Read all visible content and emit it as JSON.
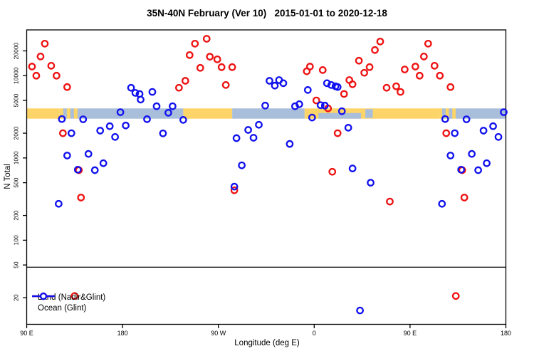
{
  "chart_data": {
    "type": "scatter",
    "title": "35N-40N February (Ver 10)   2015-01-01 to 2020-12-18",
    "xlabel": "Longitude (deg E)",
    "ylabel": "N Total",
    "x_axis": {
      "min": 0,
      "max": 450,
      "unit": "degrees east of 90E, wrapping eastward around the globe",
      "ticks": [
        {
          "pos": 0,
          "label": "90 E"
        },
        {
          "pos": 90,
          "label": "180"
        },
        {
          "pos": 180,
          "label": "90 W"
        },
        {
          "pos": 270,
          "label": "0"
        },
        {
          "pos": 360,
          "label": "90 E"
        },
        {
          "pos": 450,
          "label": "180"
        }
      ]
    },
    "y_axis": {
      "scale": "log",
      "min": 9.5,
      "max": 36000,
      "ticks": [
        20,
        50,
        100,
        200,
        500,
        1000,
        2000,
        5000,
        10000,
        20000
      ]
    },
    "grid": "off",
    "cutoff_line_n": 47,
    "land_ocean_band": {
      "n_top": 4000,
      "n_bottom": 3000,
      "segments": [
        {
          "from": 0,
          "to": 31,
          "type": "land"
        },
        {
          "from": 31,
          "to": 51,
          "type": "mixed"
        },
        {
          "from": 51,
          "to": 147,
          "type": "ocean"
        },
        {
          "from": 147,
          "to": 193,
          "type": "land"
        },
        {
          "from": 193,
          "to": 261,
          "type": "ocean"
        },
        {
          "from": 261,
          "to": 387,
          "type": "land"
        },
        {
          "from": 387,
          "to": 406,
          "type": "mixed"
        },
        {
          "from": 406,
          "to": 450,
          "type": "ocean"
        }
      ],
      "patches": [
        {
          "from": 274,
          "to": 314,
          "half": "lower",
          "type": "ocean"
        },
        {
          "from": 318,
          "to": 325,
          "half": "full",
          "type": "ocean"
        }
      ]
    },
    "legend": {
      "position": "bottom-left"
    },
    "series": [
      {
        "name": "Land (Nadir&Glint)",
        "color": "#ee1111",
        "points": [
          [
            17,
            24500
          ],
          [
            13,
            17100
          ],
          [
            5,
            12900
          ],
          [
            23,
            13200
          ],
          [
            9,
            10000
          ],
          [
            28,
            10000
          ],
          [
            38,
            7270
          ],
          [
            34,
            2000
          ],
          [
            49,
            710
          ],
          [
            51,
            330
          ],
          [
            45,
            21
          ],
          [
            158,
            24500
          ],
          [
            153,
            17800
          ],
          [
            163,
            12450
          ],
          [
            149,
            8660
          ],
          [
            143,
            7130
          ],
          [
            169,
            28100
          ],
          [
            172,
            17000
          ],
          [
            179,
            15800
          ],
          [
            183,
            12700
          ],
          [
            193,
            12700
          ],
          [
            187,
            7700
          ],
          [
            195,
            405
          ],
          [
            266,
            12900
          ],
          [
            263,
            11300
          ],
          [
            278,
            11700
          ],
          [
            303,
            8840
          ],
          [
            306,
            7870
          ],
          [
            298,
            6000
          ],
          [
            272,
            5000
          ],
          [
            283,
            4000
          ],
          [
            292,
            2000
          ],
          [
            287,
            680
          ],
          [
            332,
            26000
          ],
          [
            327,
            20500
          ],
          [
            312,
            15200
          ],
          [
            322,
            12700
          ],
          [
            317,
            10850
          ],
          [
            338,
            7130
          ],
          [
            347,
            7430
          ],
          [
            351,
            6350
          ],
          [
            341,
            295
          ],
          [
            355,
            11900
          ],
          [
            377,
            24500
          ],
          [
            373,
            17100
          ],
          [
            365,
            12900
          ],
          [
            383,
            13200
          ],
          [
            369,
            10000
          ],
          [
            388,
            10000
          ],
          [
            398,
            7270
          ],
          [
            394,
            2000
          ],
          [
            409,
            710
          ],
          [
            411,
            330
          ],
          [
            403,
            21
          ]
        ]
      },
      {
        "name": "Ocean (Glint)",
        "color": "#1111ee",
        "points": [
          [
            88,
            3600
          ],
          [
            33,
            2970
          ],
          [
            53,
            2950
          ],
          [
            69,
            2150
          ],
          [
            78,
            2430
          ],
          [
            83,
            1800
          ],
          [
            42,
            2000
          ],
          [
            38,
            1070
          ],
          [
            58,
            1120
          ],
          [
            72,
            863
          ],
          [
            48,
            720
          ],
          [
            64,
            710
          ],
          [
            30,
            277
          ],
          [
            98,
            7130
          ],
          [
            102,
            6180
          ],
          [
            106,
            6000
          ],
          [
            107,
            5120
          ],
          [
            118,
            6350
          ],
          [
            122,
            4250
          ],
          [
            137,
            4250
          ],
          [
            133,
            3540
          ],
          [
            113,
            2960
          ],
          [
            147,
            2900
          ],
          [
            93,
            2480
          ],
          [
            128,
            1990
          ],
          [
            228,
            8660
          ],
          [
            233,
            7570
          ],
          [
            237,
            8840
          ],
          [
            241,
            8100
          ],
          [
            224,
            4330
          ],
          [
            252,
            4250
          ],
          [
            256,
            4500
          ],
          [
            218,
            2530
          ],
          [
            208,
            2190
          ],
          [
            213,
            1760
          ],
          [
            197,
            1740
          ],
          [
            247,
            1480
          ],
          [
            202,
            813
          ],
          [
            195,
            448
          ],
          [
            282,
            8100
          ],
          [
            286,
            7700
          ],
          [
            290,
            7430
          ],
          [
            292,
            7280
          ],
          [
            264,
            6700
          ],
          [
            276,
            4380
          ],
          [
            280,
            4330
          ],
          [
            268,
            3100
          ],
          [
            296,
            3700
          ],
          [
            302,
            2330
          ],
          [
            306,
            745
          ],
          [
            323,
            500
          ],
          [
            313,
            14
          ],
          [
            448,
            3600
          ],
          [
            393,
            2970
          ],
          [
            413,
            2950
          ],
          [
            429,
            2150
          ],
          [
            438,
            2430
          ],
          [
            443,
            1800
          ],
          [
            402,
            2000
          ],
          [
            398,
            1070
          ],
          [
            418,
            1120
          ],
          [
            432,
            863
          ],
          [
            408,
            720
          ],
          [
            424,
            710
          ],
          [
            390,
            277
          ]
        ]
      }
    ],
    "band_colors": {
      "land": "#fdd468",
      "ocean": "#a9bedb"
    }
  }
}
